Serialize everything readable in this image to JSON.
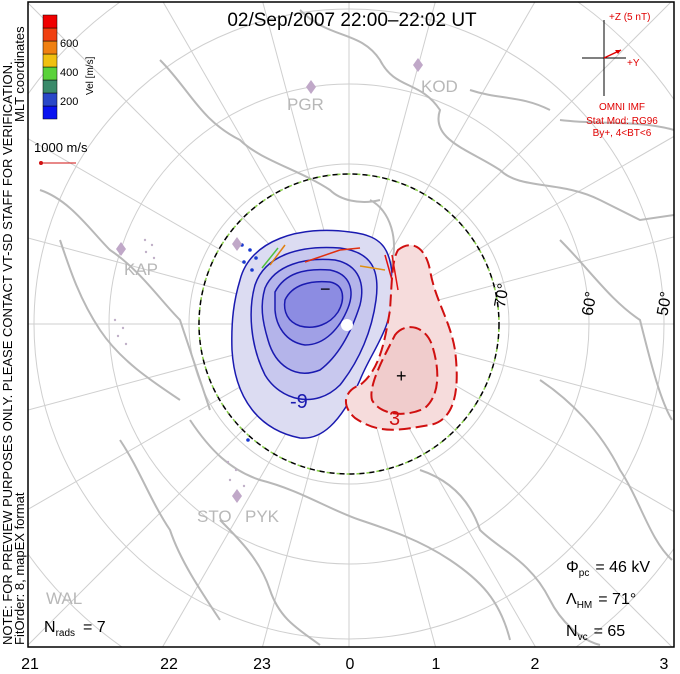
{
  "title": "02/Sep/2007 22:00–22:02 UT",
  "side_note_line1": "NOTE: FOR PREVIEW PURPOSES ONLY. PLEASE CONTACT VT-SD STAFF FOR VERIFICATION.",
  "side_note_line2": "FitOrder: 8, mapEX format",
  "coordinates_label": "MLT coordinates",
  "colorbar": {
    "label": "Vel [m/s]",
    "ticks": [
      "200",
      "400",
      "600"
    ],
    "colors": [
      "#0a14f0",
      "#2a48c8",
      "#3a8a6a",
      "#5ad23a",
      "#f0c010",
      "#f08010",
      "#f04010",
      "#f00000"
    ]
  },
  "reference_vector": "1000 m/s",
  "imf": {
    "z_label": "+Z (5 nT)",
    "y_label": "+Y",
    "source": "OMNI IMF",
    "model": "Stat Mod: RG96",
    "condition": "By+, 4<BT<6",
    "color": "#e00000"
  },
  "stations": [
    "PGR",
    "KOD",
    "KAP",
    "STO",
    "PYK",
    "WAL"
  ],
  "latitude_labels": [
    "70°",
    "60°",
    "50°"
  ],
  "contours": {
    "negative_label": "-9",
    "positive_label": "3",
    "min_marker": "−",
    "max_marker": "+",
    "negative_color": "#1a1ab0",
    "positive_color": "#d01010"
  },
  "stats": {
    "phi_pc_symbol": "Φ",
    "phi_pc_sub": "pc",
    "phi_pc_value": "=  46  kV",
    "lambda_hm_symbol": "Λ",
    "lambda_hm_sub": "HM",
    "lambda_hm_value": "=  71°",
    "n_vc_symbol": "N",
    "n_vc_sub": "vc",
    "n_vc_value": "=  65",
    "n_rads_symbol": "N",
    "n_rads_sub": "rads",
    "n_rads_value": "=  7"
  },
  "mlt_ticks": [
    "21",
    "22",
    "23",
    "0",
    "1",
    "2",
    "3"
  ]
}
